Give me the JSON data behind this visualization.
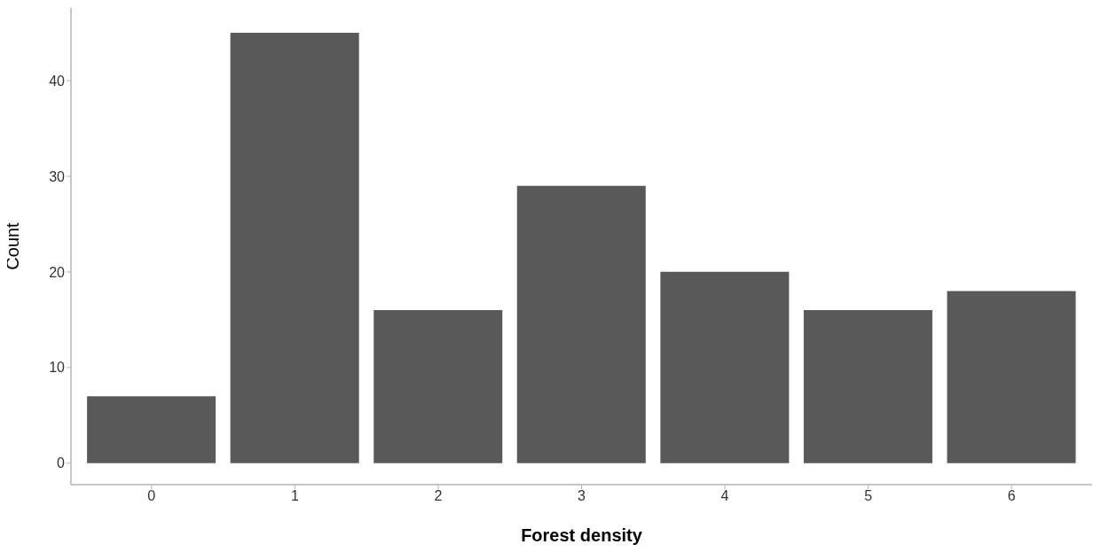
{
  "chart_data": {
    "type": "bar",
    "xlabel": "Forest density",
    "ylabel": "Count",
    "categories": [
      "0",
      "1",
      "2",
      "3",
      "4",
      "5",
      "6"
    ],
    "values": [
      7,
      45,
      16,
      29,
      20,
      16,
      18
    ],
    "color": "#595959",
    "ylim": [
      -2.25,
      47.6
    ],
    "yticks": [
      0,
      10,
      20,
      30,
      40
    ],
    "grid": false,
    "legend": false
  }
}
